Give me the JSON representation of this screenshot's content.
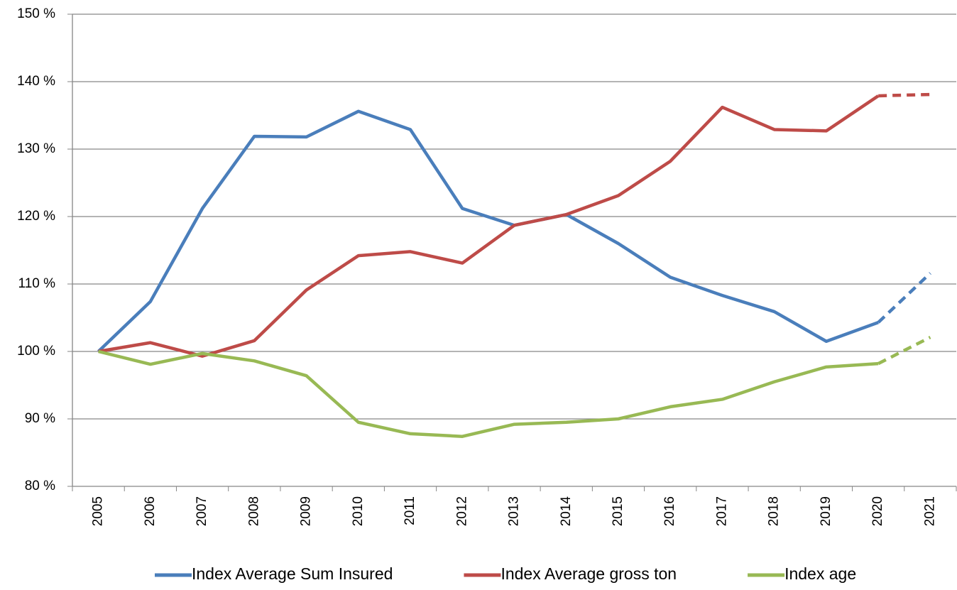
{
  "chart_data": {
    "type": "line",
    "categories": [
      "2005",
      "2006",
      "2007",
      "2008",
      "2009",
      "2010",
      "2011",
      "2012",
      "2013",
      "2014",
      "2015",
      "2016",
      "2017",
      "2018",
      "2019",
      "2020",
      "2021"
    ],
    "series": [
      {
        "name": "Index Average Sum Insured",
        "color": "#4a7ebb",
        "values": [
          100,
          107.4,
          121.2,
          131.9,
          131.8,
          135.6,
          132.9,
          121.2,
          118.7,
          120.3,
          116,
          111,
          108.3,
          105.9,
          101.5,
          104.3,
          111.6
        ]
      },
      {
        "name": "Index Average gross ton",
        "color": "#be4b48",
        "values": [
          100,
          101.3,
          99.3,
          101.6,
          109.1,
          114.2,
          114.8,
          113.1,
          118.7,
          120.3,
          123.1,
          128.2,
          136.2,
          132.9,
          132.7,
          137.9,
          138.1
        ]
      },
      {
        "name": "Index age",
        "color": "#98b954",
        "values": [
          100,
          98.1,
          99.7,
          98.6,
          96.4,
          89.5,
          87.8,
          87.4,
          89.2,
          89.5,
          90,
          91.8,
          92.9,
          95.5,
          97.7,
          98.2,
          102.1
        ]
      }
    ],
    "dashed_from": "2020",
    "ylim": [
      80,
      150
    ],
    "yticks": [
      {
        "value": 80,
        "label": "80 %"
      },
      {
        "value": 90,
        "label": "90 %"
      },
      {
        "value": 100,
        "label": "100 %"
      },
      {
        "value": 110,
        "label": "110 %"
      },
      {
        "value": 120,
        "label": "120 %"
      },
      {
        "value": 130,
        "label": "130 %"
      },
      {
        "value": 140,
        "label": "140 %"
      },
      {
        "value": 150,
        "label": "150 %"
      }
    ],
    "grid": true,
    "legend": "bottom"
  }
}
